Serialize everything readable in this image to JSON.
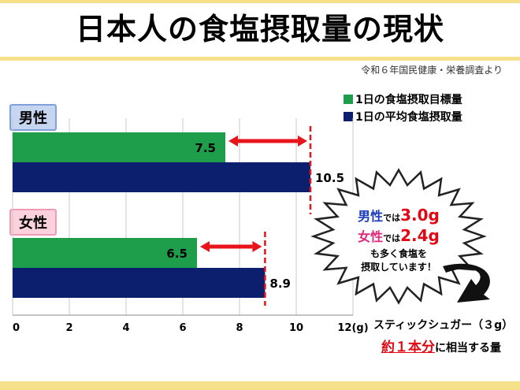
{
  "title": "日本人の食塩摂取量の現状",
  "source": "令和６年国民健康・栄養調査より",
  "colors": {
    "target": "#1e9e4a",
    "average": "#0c1f6e",
    "arrow": "#e8141b",
    "band": "#f7e08a"
  },
  "chart_data": {
    "type": "bar",
    "orientation": "horizontal",
    "categories": [
      "男性",
      "女性"
    ],
    "series": [
      {
        "name": "1日の食塩摂取目標量",
        "values": [
          7.5,
          6.5
        ]
      },
      {
        "name": "1日の平均食塩摂取量",
        "values": [
          10.5,
          8.9
        ]
      }
    ],
    "xlim": [
      0,
      12
    ],
    "xticks": [
      "0",
      "2",
      "4",
      "6",
      "8",
      "10",
      "12(g)"
    ],
    "data_labels": {
      "target": [
        "7.5",
        "6.5"
      ],
      "average": [
        "10.5",
        "8.9"
      ]
    },
    "legend_position": "top-right",
    "grid": true
  },
  "callout": {
    "male": "男性",
    "male_suffix": "では",
    "male_value": "3.0g",
    "female": "女性",
    "female_suffix": "では",
    "female_value": "2.4g",
    "line3": "も多く食塩を",
    "line4": "摂取しています！"
  },
  "stick": {
    "line1": "スティックシュガー（３g）",
    "highlight": "約１本分",
    "rest": "に相当する量"
  }
}
